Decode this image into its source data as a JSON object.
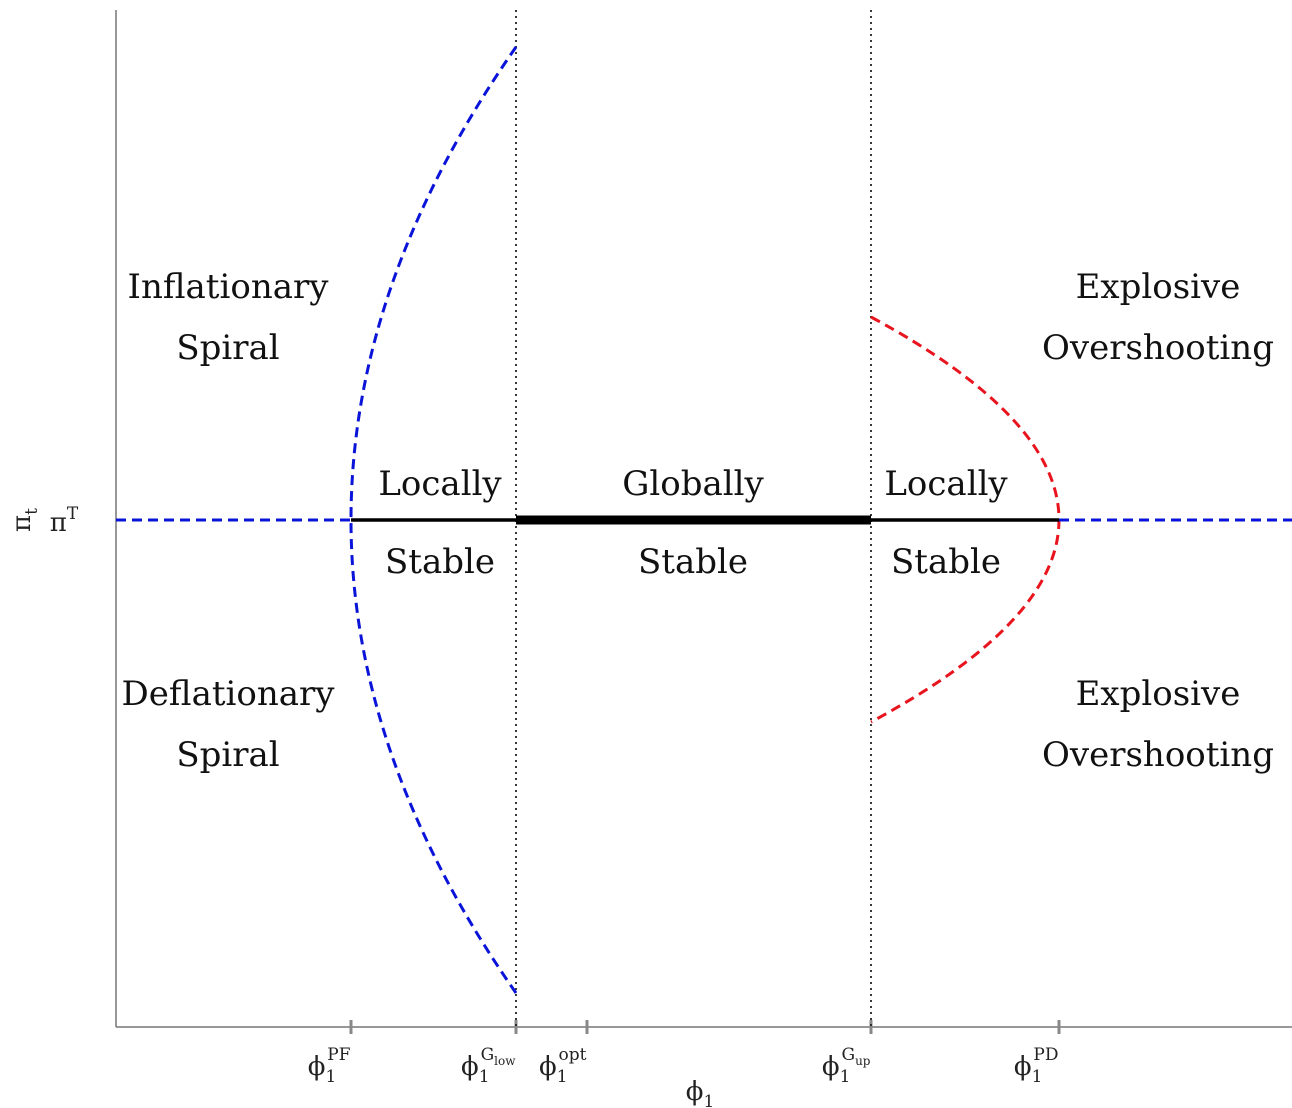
{
  "axis": {
    "y_label": {
      "base": "π",
      "sub": "t"
    },
    "x_label": {
      "base": "ϕ",
      "sub": "1"
    },
    "y_tick": {
      "base": "π",
      "sup": "T"
    }
  },
  "x_ticks": [
    {
      "base": "ϕ",
      "sub": "1",
      "sup": "PF"
    },
    {
      "base": "ϕ",
      "sub": "1",
      "sup": "G",
      "sup_sub": "low"
    },
    {
      "base": "ϕ",
      "sub": "1",
      "sup": "opt"
    },
    {
      "base": "ϕ",
      "sub": "1",
      "sup": "G",
      "sup_sub": "up"
    },
    {
      "base": "ϕ",
      "sub": "1",
      "sup": "PD"
    }
  ],
  "regions": [
    {
      "lines": [
        "Inflationary",
        "Spiral"
      ]
    },
    {
      "lines": [
        "Deflationary",
        "Spiral"
      ]
    },
    {
      "lines": [
        "Explosive",
        "Overshooting"
      ]
    },
    {
      "lines": [
        "Explosive",
        "Overshooting"
      ]
    },
    {
      "lines": [
        "Locally",
        "Stable"
      ]
    },
    {
      "lines": [
        "Globally",
        "Stable"
      ]
    },
    {
      "lines": [
        "Locally",
        "Stable"
      ]
    }
  ]
}
